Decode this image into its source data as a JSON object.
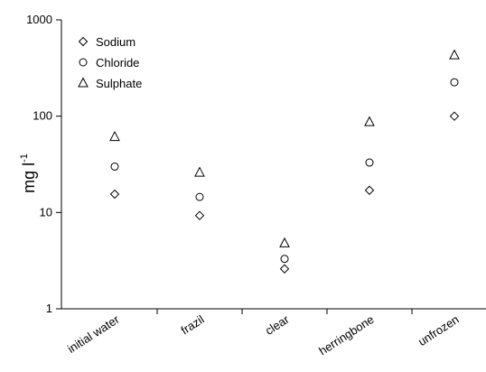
{
  "chart_data": {
    "type": "scatter",
    "categories": [
      "initial water",
      "frazil",
      "clear",
      "herringbone",
      "unfrozen"
    ],
    "series": [
      {
        "name": "Sodium",
        "marker": "diamond",
        "values": [
          15.5,
          9.3,
          2.6,
          17,
          100
        ]
      },
      {
        "name": "Chloride",
        "marker": "circle",
        "values": [
          30,
          14.5,
          3.3,
          33,
          225
        ]
      },
      {
        "name": "Sulphate",
        "marker": "triangle",
        "values": [
          61,
          26,
          4.8,
          87,
          430
        ]
      }
    ],
    "ylabel_main": "mg l",
    "ylabel_sup": "-1",
    "yscale": "log",
    "ylim": [
      1,
      1000
    ],
    "yticks": [
      1,
      10,
      100,
      1000
    ],
    "ytick_labels": [
      "1",
      "10",
      "100",
      "1000"
    ],
    "legend_position": "top-left",
    "grid": false
  }
}
